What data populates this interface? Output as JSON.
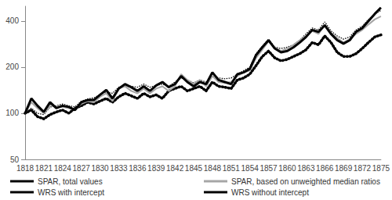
{
  "chart_data": {
    "type": "line",
    "log": "y",
    "grid": false,
    "legend": "bottom",
    "xlim": [
      1818,
      1875
    ],
    "xticks": [
      1818,
      1821,
      1824,
      1827,
      1830,
      1833,
      1836,
      1839,
      1842,
      1845,
      1848,
      1851,
      1854,
      1857,
      1860,
      1863,
      1866,
      1869,
      1872,
      1875
    ],
    "ylim": [
      50,
      500
    ],
    "yticks": [
      50,
      100,
      200,
      400
    ],
    "x": [
      1818,
      1819,
      1820,
      1821,
      1822,
      1823,
      1824,
      1825,
      1826,
      1827,
      1828,
      1829,
      1830,
      1831,
      1832,
      1833,
      1834,
      1835,
      1836,
      1837,
      1838,
      1839,
      1840,
      1841,
      1842,
      1843,
      1844,
      1845,
      1846,
      1847,
      1848,
      1849,
      1850,
      1851,
      1852,
      1853,
      1854,
      1855,
      1856,
      1857,
      1858,
      1859,
      1860,
      1861,
      1862,
      1863,
      1864,
      1865,
      1866,
      1867,
      1868,
      1869,
      1870,
      1871,
      1872,
      1873,
      1874,
      1875
    ],
    "series": [
      {
        "name": "SPAR, total values",
        "color": "#000000",
        "line_style": "solid",
        "values": [
          100,
          125,
          112,
          102,
          118,
          108,
          112,
          110,
          105,
          118,
          122,
          122,
          132,
          142,
          125,
          145,
          155,
          148,
          140,
          150,
          140,
          152,
          160,
          148,
          155,
          175,
          160,
          150,
          160,
          155,
          185,
          165,
          160,
          155,
          180,
          185,
          195,
          240,
          270,
          300,
          265,
          250,
          255,
          270,
          290,
          315,
          350,
          340,
          375,
          330,
          300,
          285,
          300,
          340,
          360,
          400,
          445,
          490
        ]
      },
      {
        "name": "SPAR, based on unweighted median ratios",
        "color": "#a6a6a6",
        "line_style": "solid",
        "values": [
          100,
          118,
          108,
          100,
          112,
          110,
          110,
          108,
          106,
          115,
          120,
          118,
          128,
          135,
          120,
          145,
          150,
          140,
          135,
          145,
          135,
          145,
          150,
          140,
          150,
          180,
          165,
          155,
          165,
          150,
          175,
          160,
          158,
          160,
          175,
          185,
          190,
          230,
          260,
          295,
          270,
          255,
          265,
          280,
          300,
          320,
          345,
          330,
          380,
          335,
          310,
          290,
          305,
          330,
          350,
          380,
          410,
          430
        ]
      },
      {
        "name": "WRS with intercept",
        "color": "#000000",
        "line_style": "dotted",
        "values": [
          100,
          105,
          95,
          92,
          98,
          102,
          105,
          100,
          108,
          112,
          118,
          115,
          120,
          125,
          118,
          128,
          135,
          130,
          125,
          135,
          128,
          132,
          125,
          140,
          145,
          150,
          140,
          145,
          150,
          140,
          160,
          150,
          148,
          145,
          165,
          170,
          180,
          205,
          235,
          255,
          230,
          220,
          225,
          235,
          245,
          260,
          290,
          280,
          320,
          290,
          250,
          235,
          235,
          245,
          265,
          290,
          315,
          325
        ]
      },
      {
        "name": "WRS without intercept",
        "color": "#000000",
        "line_style": "dashed",
        "values": [
          100,
          108,
          100,
          98,
          110,
          112,
          115,
          112,
          110,
          120,
          124,
          126,
          132,
          138,
          135,
          148,
          150,
          150,
          148,
          155,
          148,
          152,
          155,
          150,
          160,
          170,
          165,
          158,
          165,
          160,
          175,
          170,
          168,
          170,
          180,
          190,
          200,
          245,
          275,
          305,
          270,
          265,
          270,
          280,
          300,
          330,
          360,
          350,
          395,
          345,
          320,
          305,
          315,
          350,
          370,
          410,
          445,
          470
        ]
      }
    ]
  }
}
